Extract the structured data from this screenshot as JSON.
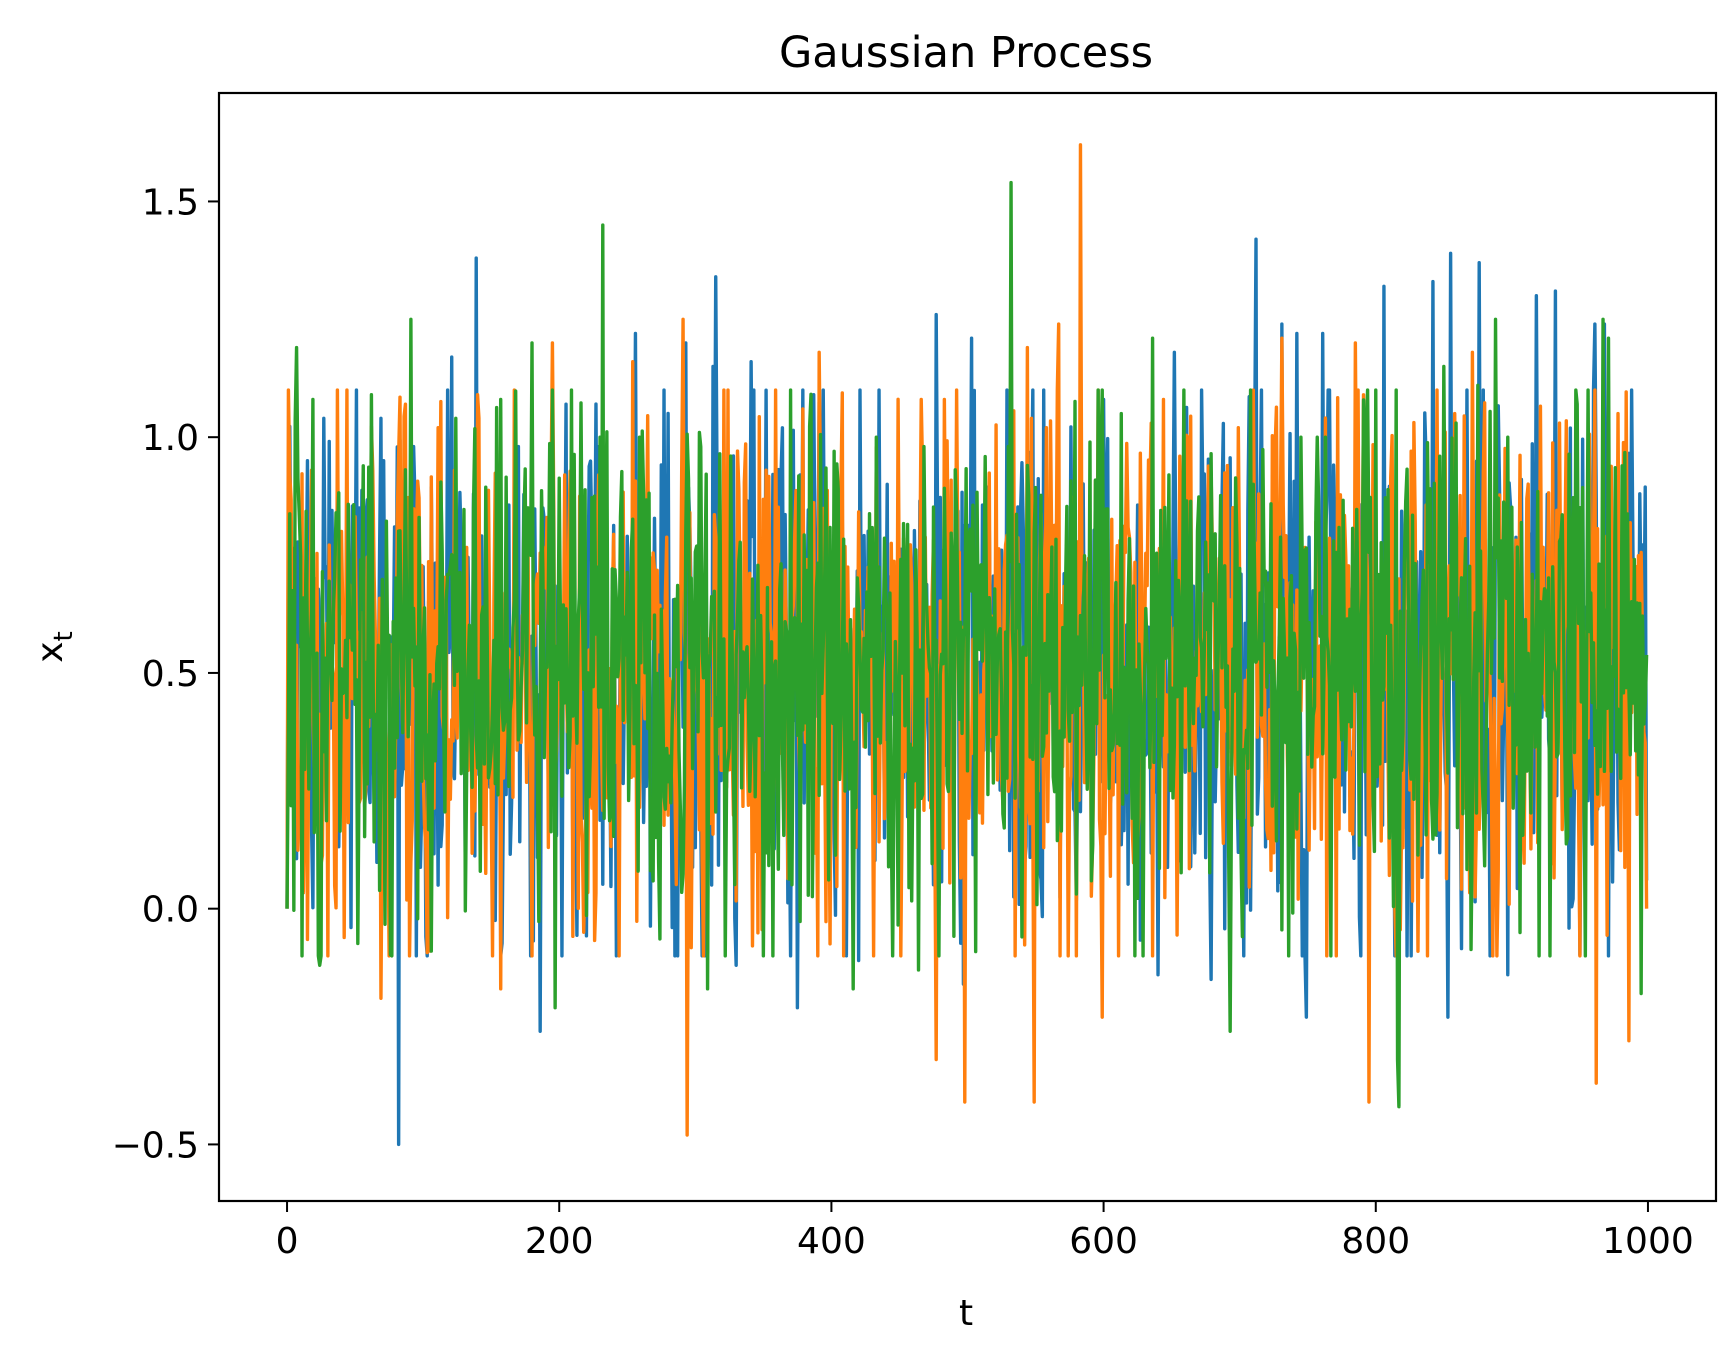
{
  "chart_data": {
    "type": "line",
    "title": "Gaussian Process",
    "xlabel": "t",
    "ylabel": "x",
    "ylabel_subscript": "t",
    "xlim": [
      -50,
      1050
    ],
    "ylim": [
      -0.62,
      1.73
    ],
    "xticks": [
      0,
      200,
      400,
      600,
      800,
      1000
    ],
    "xtick_labels": [
      "0",
      "200",
      "400",
      "600",
      "800",
      "1000"
    ],
    "yticks": [
      -0.5,
      0.0,
      0.5,
      1.0,
      1.5
    ],
    "ytick_labels": [
      "−0.5",
      "0.0",
      "0.5",
      "1.0",
      "1.5"
    ],
    "grid": false,
    "legend": "none",
    "n_points": 1000,
    "series": [
      {
        "color": "#1f77b4",
        "mean": 0.5,
        "std": 0.28,
        "x": [
          0,
          1,
          5,
          15,
          27,
          47,
          53,
          69,
          71,
          82,
          93,
          111,
          121,
          137,
          139,
          151,
          170,
          186,
          188,
          196,
          229,
          256,
          283,
          293,
          313,
          315,
          330,
          341,
          375,
          377,
          420,
          441,
          477,
          497,
          503,
          548,
          600,
          602,
          640,
          652,
          672,
          679,
          712,
          731,
          742,
          749,
          761,
          765,
          806,
          842,
          853,
          855,
          876,
          891,
          897,
          918,
          932,
          934,
          961,
          968,
          985,
          994,
          999
        ],
        "values": [
          0.0,
          0.82,
          0.6,
          0.95,
          1.04,
          -0.04,
          0.85,
          1.04,
          0.95,
          -0.5,
          0.98,
          0.05,
          1.17,
          0.88,
          1.38,
          0.12,
          0.98,
          -0.26,
          0.85,
          0.62,
          0.98,
          1.22,
          -0.04,
          1.2,
          1.15,
          1.34,
          -0.12,
          1.16,
          -0.21,
          0.92,
          -0.11,
          0.9,
          1.26,
          -0.16,
          1.21,
          1.1,
          1.08,
          0.85,
          -0.14,
          1.18,
          1.1,
          -0.15,
          1.42,
          1.24,
          1.22,
          -0.23,
          1.22,
          1.1,
          1.32,
          1.33,
          -0.23,
          1.39,
          1.37,
          0.88,
          -0.14,
          1.3,
          1.31,
          0.88,
          1.24,
          1.24,
          0.88,
          0.88,
          0.06
        ]
      },
      {
        "color": "#ff7f0e",
        "mean": 0.49,
        "std": 0.3,
        "x": [
          0,
          2,
          18,
          40,
          69,
          87,
          105,
          111,
          140,
          157,
          195,
          204,
          218,
          229,
          254,
          291,
          294,
          296,
          318,
          352,
          391,
          392,
          466,
          477,
          483,
          498,
          544,
          549,
          558,
          567,
          582,
          583,
          599,
          644,
          662,
          699,
          731,
          785,
          795,
          797,
          858,
          871,
          911,
          935,
          962,
          978,
          986,
          1000
        ],
        "values": [
          0.0,
          0.92,
          0.93,
          0.8,
          -0.19,
          1.07,
          -0.09,
          1.02,
          1.09,
          -0.17,
          1.2,
          0.92,
          -0.05,
          0.92,
          1.16,
          1.25,
          -0.48,
          0.84,
          0.88,
          0.93,
          1.18,
          0.9,
          1.08,
          -0.32,
          1.08,
          -0.41,
          1.19,
          -0.41,
          1.02,
          1.24,
          0.23,
          1.62,
          -0.23,
          1.08,
          1.0,
          1.02,
          1.21,
          1.2,
          -0.41,
          0.56,
          1.05,
          1.18,
          0.87,
          1.03,
          -0.37,
          1.05,
          -0.28,
          0.0
        ]
      },
      {
        "color": "#2ca02c",
        "mean": 0.5,
        "std": 0.27,
        "x": [
          0,
          7,
          19,
          24,
          62,
          91,
          106,
          124,
          137,
          157,
          180,
          197,
          230,
          232,
          259,
          303,
          309,
          326,
          370,
          402,
          416,
          433,
          464,
          468,
          530,
          532,
          544,
          574,
          598,
          613,
          636,
          648,
          693,
          745,
          757,
          763,
          793,
          816,
          817,
          850,
          875,
          888,
          897,
          948,
          967,
          971,
          995
        ],
        "values": [
          0.0,
          1.19,
          1.08,
          -0.12,
          1.09,
          1.25,
          -0.09,
          1.04,
          0.85,
          1.08,
          1.2,
          -0.21,
          1.0,
          1.45,
          1.0,
          1.01,
          -0.17,
          0.96,
          1.1,
          0.97,
          -0.17,
          1.0,
          -0.13,
          0.98,
          0.98,
          1.54,
          0.94,
          0.42,
          0.96,
          1.05,
          1.21,
          0.92,
          -0.26,
          1.0,
          1.0,
          1.0,
          1.02,
          -0.32,
          -0.42,
          1.15,
          1.11,
          1.25,
          1.0,
          1.07,
          1.25,
          1.21,
          -0.18
        ]
      }
    ]
  }
}
